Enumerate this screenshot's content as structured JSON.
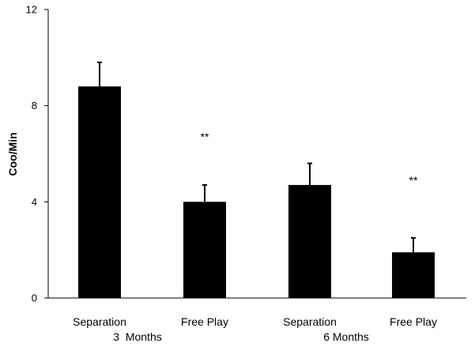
{
  "chart_data": {
    "type": "bar",
    "ylabel": "Coo/Min",
    "xlabel": "",
    "ylim": [
      0,
      12
    ],
    "yticks": [
      0,
      4,
      8,
      12
    ],
    "grid": false,
    "legend": "none",
    "bar_color": "#000000",
    "categories": [
      "Separation",
      "Free Play",
      "Separation",
      "Free Play"
    ],
    "groups": [
      {
        "label": "3  Months",
        "categories": [
          0,
          1
        ]
      },
      {
        "label": "6 Months",
        "categories": [
          2,
          3
        ]
      }
    ],
    "values": [
      8.8,
      4.0,
      4.7,
      1.9
    ],
    "error_upper": [
      9.8,
      4.7,
      5.6,
      2.5
    ],
    "annotations": [
      "",
      "**",
      "",
      "**"
    ],
    "annotation_y": [
      null,
      6.7,
      null,
      4.9
    ]
  }
}
